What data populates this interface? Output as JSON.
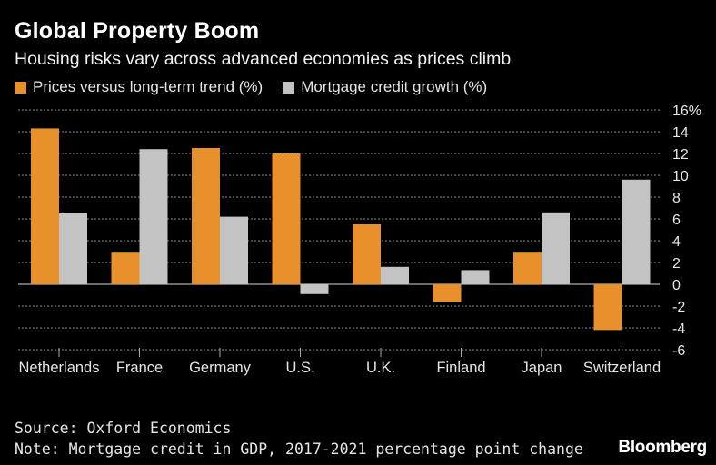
{
  "chart_data": {
    "type": "bar",
    "title": "Global Property Boom",
    "subtitle": "Housing risks vary across advanced economies as prices climb",
    "categories": [
      "Netherlands",
      "France",
      "Germany",
      "U.S.",
      "U.K.",
      "Finland",
      "Japan",
      "Switzerland"
    ],
    "series": [
      {
        "name": "Prices versus long-term trend (%)",
        "color": "#e8902b",
        "values": [
          14.3,
          2.9,
          12.5,
          12.0,
          5.5,
          -1.6,
          2.9,
          -4.2
        ]
      },
      {
        "name": "Mortgage credit growth (%)",
        "color": "#c3c3c3",
        "values": [
          6.5,
          12.4,
          6.2,
          -0.9,
          1.6,
          1.3,
          6.6,
          9.6
        ]
      }
    ],
    "ylim": [
      -6,
      16
    ],
    "yticks": [
      -6,
      -4,
      -2,
      0,
      2,
      4,
      6,
      8,
      10,
      12,
      14,
      16
    ],
    "ytick_labels": [
      "-6",
      "-4",
      "-2",
      "0",
      "2",
      "4",
      "6",
      "8",
      "10",
      "12",
      "14",
      "16%"
    ],
    "grid": true,
    "legend_position": "top-left",
    "source": "Source: Oxford Economics",
    "note": "Note: Mortgage credit in GDP, 2017-2021 percentage point change",
    "brand": "Bloomberg"
  }
}
